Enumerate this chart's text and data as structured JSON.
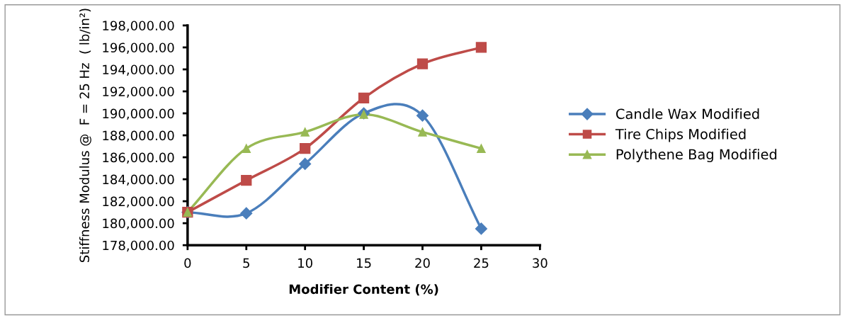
{
  "chart_data": {
    "type": "line",
    "xlabel": "Modifier Content (%)",
    "ylabel": "Stiffness Modulus @  F = 25 Hz  ( lb/in²)",
    "x": [
      0,
      5,
      10,
      15,
      20,
      25
    ],
    "series": [
      {
        "name": "Candle Wax Modified",
        "color": "#4a7ebb",
        "marker": "diamond",
        "values": [
          181000,
          180900,
          185400,
          190000,
          189800,
          179500
        ]
      },
      {
        "name": "Tire Chips Modified",
        "color": "#be4b48",
        "marker": "square",
        "values": [
          181000,
          183900,
          186800,
          191400,
          194500,
          196000
        ]
      },
      {
        "name": "Polythene Bag Modified",
        "color": "#98b954",
        "marker": "triangle",
        "values": [
          181000,
          186800,
          188300,
          189900,
          188300,
          186800
        ]
      }
    ],
    "xlim": [
      0,
      30
    ],
    "xticks": [
      0,
      5,
      10,
      15,
      20,
      25,
      30
    ],
    "ylim": [
      178000,
      198000
    ],
    "yticks": [
      {
        "value": 178000,
        "label": "178,000.00"
      },
      {
        "value": 180000,
        "label": "180,000.00"
      },
      {
        "value": 182000,
        "label": "182,000.00"
      },
      {
        "value": 184000,
        "label": "184,000.00"
      },
      {
        "value": 186000,
        "label": "186,000.00"
      },
      {
        "value": 188000,
        "label": "188,000.00"
      },
      {
        "value": 190000,
        "label": "190,000.00"
      },
      {
        "value": 192000,
        "label": "192,000.00"
      },
      {
        "value": 194000,
        "label": "194,000.00"
      },
      {
        "value": 196000,
        "label": "196,000.00"
      },
      {
        "value": 198000,
        "label": "198,000.00"
      }
    ],
    "grid": false,
    "legend": "right"
  }
}
